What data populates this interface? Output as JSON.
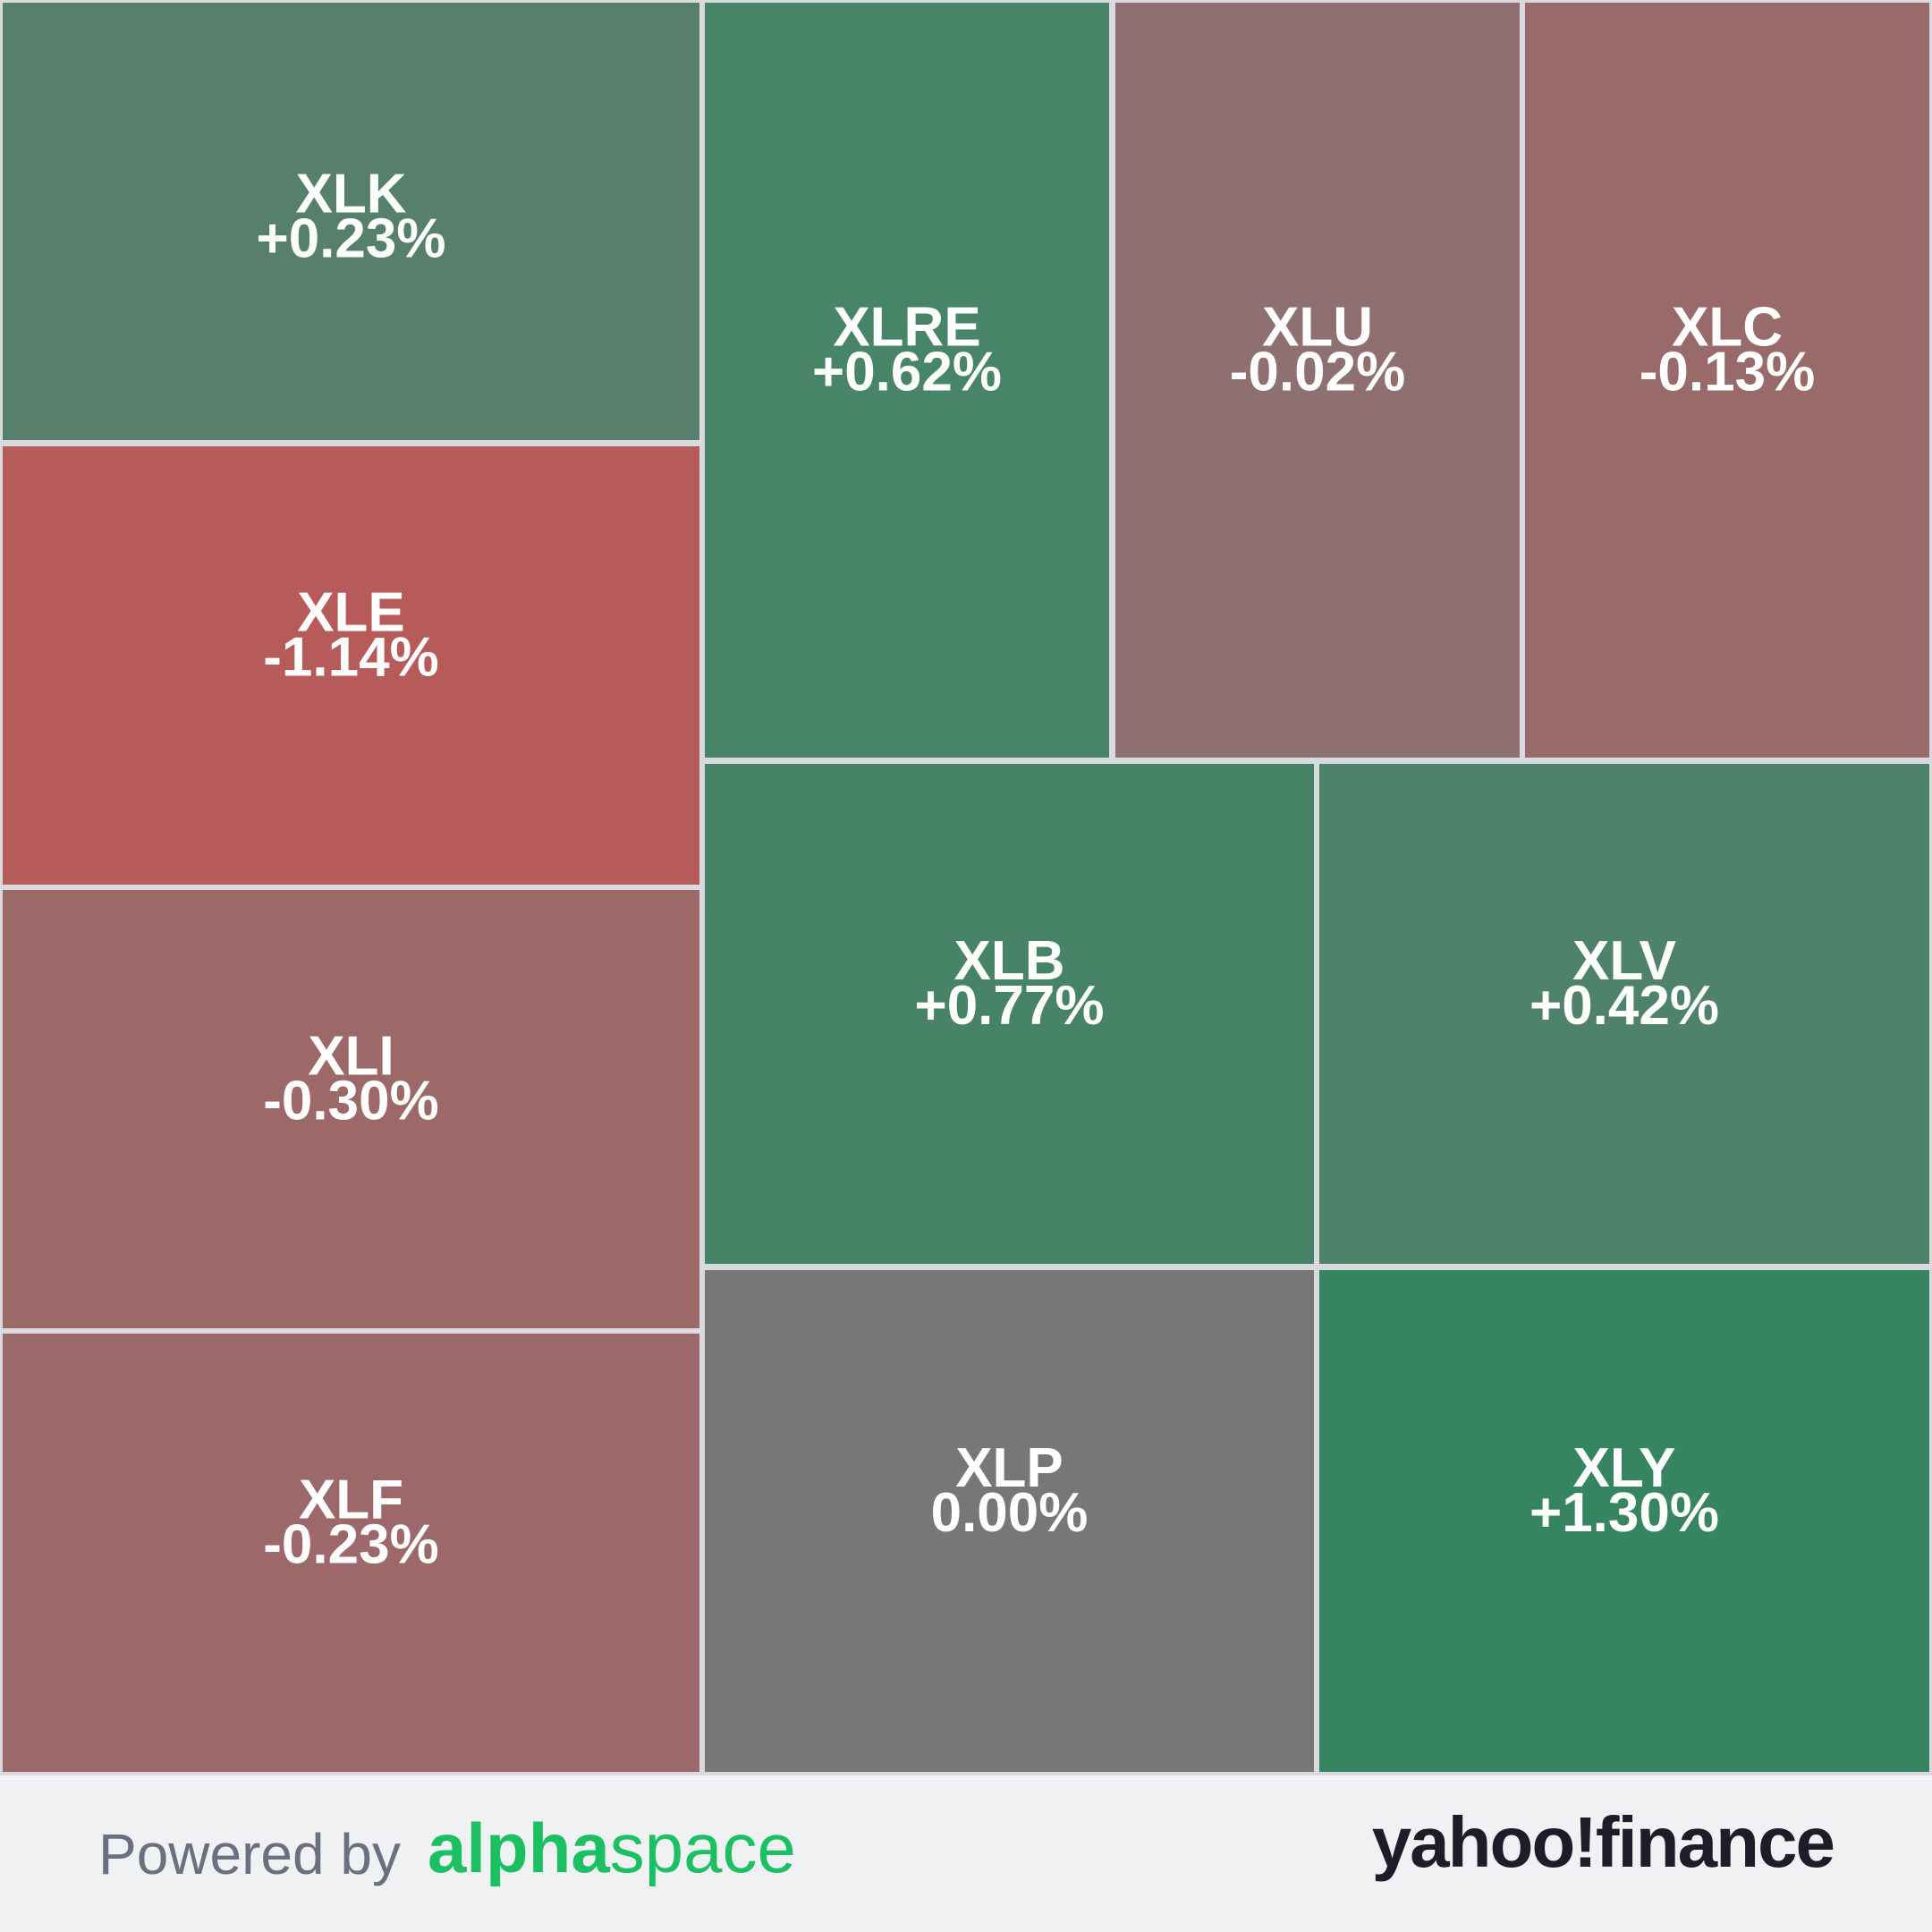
{
  "chart_data": {
    "type": "treemap",
    "categories": [
      "XLK",
      "XLE",
      "XLI",
      "XLF",
      "XLRE",
      "XLU",
      "XLC",
      "XLB",
      "XLV",
      "XLP",
      "XLY"
    ],
    "values": [
      0.23,
      -1.14,
      -0.3,
      -0.23,
      0.62,
      -0.02,
      -0.13,
      0.77,
      0.42,
      0.0,
      1.3
    ],
    "value_labels": [
      "+0.23%",
      "-1.14%",
      "-0.30%",
      "-0.23%",
      "+0.62%",
      "-0.02%",
      "-0.13%",
      "+0.77%",
      "+0.42%",
      "0.00%",
      "+1.30%"
    ],
    "colors": [
      "#56806c",
      "#b75b5a",
      "#9c6868",
      "#9c6869",
      "#488468",
      "#8f7071",
      "#986b6a",
      "#468367",
      "#4f826b",
      "#767777",
      "#378460"
    ]
  },
  "footer": {
    "powered_by": "Powered by",
    "brand_bold": "alpha",
    "brand_light": "space",
    "logo": "yahoo!finance"
  }
}
